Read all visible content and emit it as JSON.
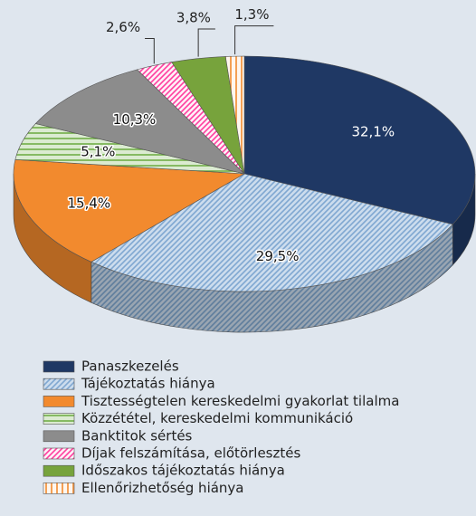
{
  "chart_data": {
    "type": "pie3d",
    "categories": [
      "Panaszkezelés",
      "Tájékoztatás hiánya",
      "Tisztességtelen kereskedelmi gyakorlat tilalma",
      "Közzététel, kereskedelmi kommunikáció",
      "Banktitok sértés",
      "Díjak felszámítása, előtörlesztés",
      "Időszakos tájékoztatás hiánya",
      "Ellenőrizhetőség hiánya"
    ],
    "values": [
      32.1,
      29.5,
      15.4,
      5.1,
      10.3,
      2.6,
      3.8,
      1.3
    ],
    "value_labels": [
      "32,1%",
      "29,5%",
      "15,4%",
      "5,1%",
      "10,3%",
      "2,6%",
      "3,8%",
      "1,3%"
    ],
    "colors": [
      "#1f3864",
      "#7fa7d1",
      "#f28a2e",
      "#70ad47",
      "#8c8c8c",
      "#ff3f9f",
      "#77a33c",
      "#f28a2e"
    ],
    "patterns": [
      "solid",
      "diagonal",
      "solid",
      "horizontal",
      "solid",
      "diagonal",
      "solid",
      "vertical"
    ],
    "legend": "bottom-left"
  }
}
